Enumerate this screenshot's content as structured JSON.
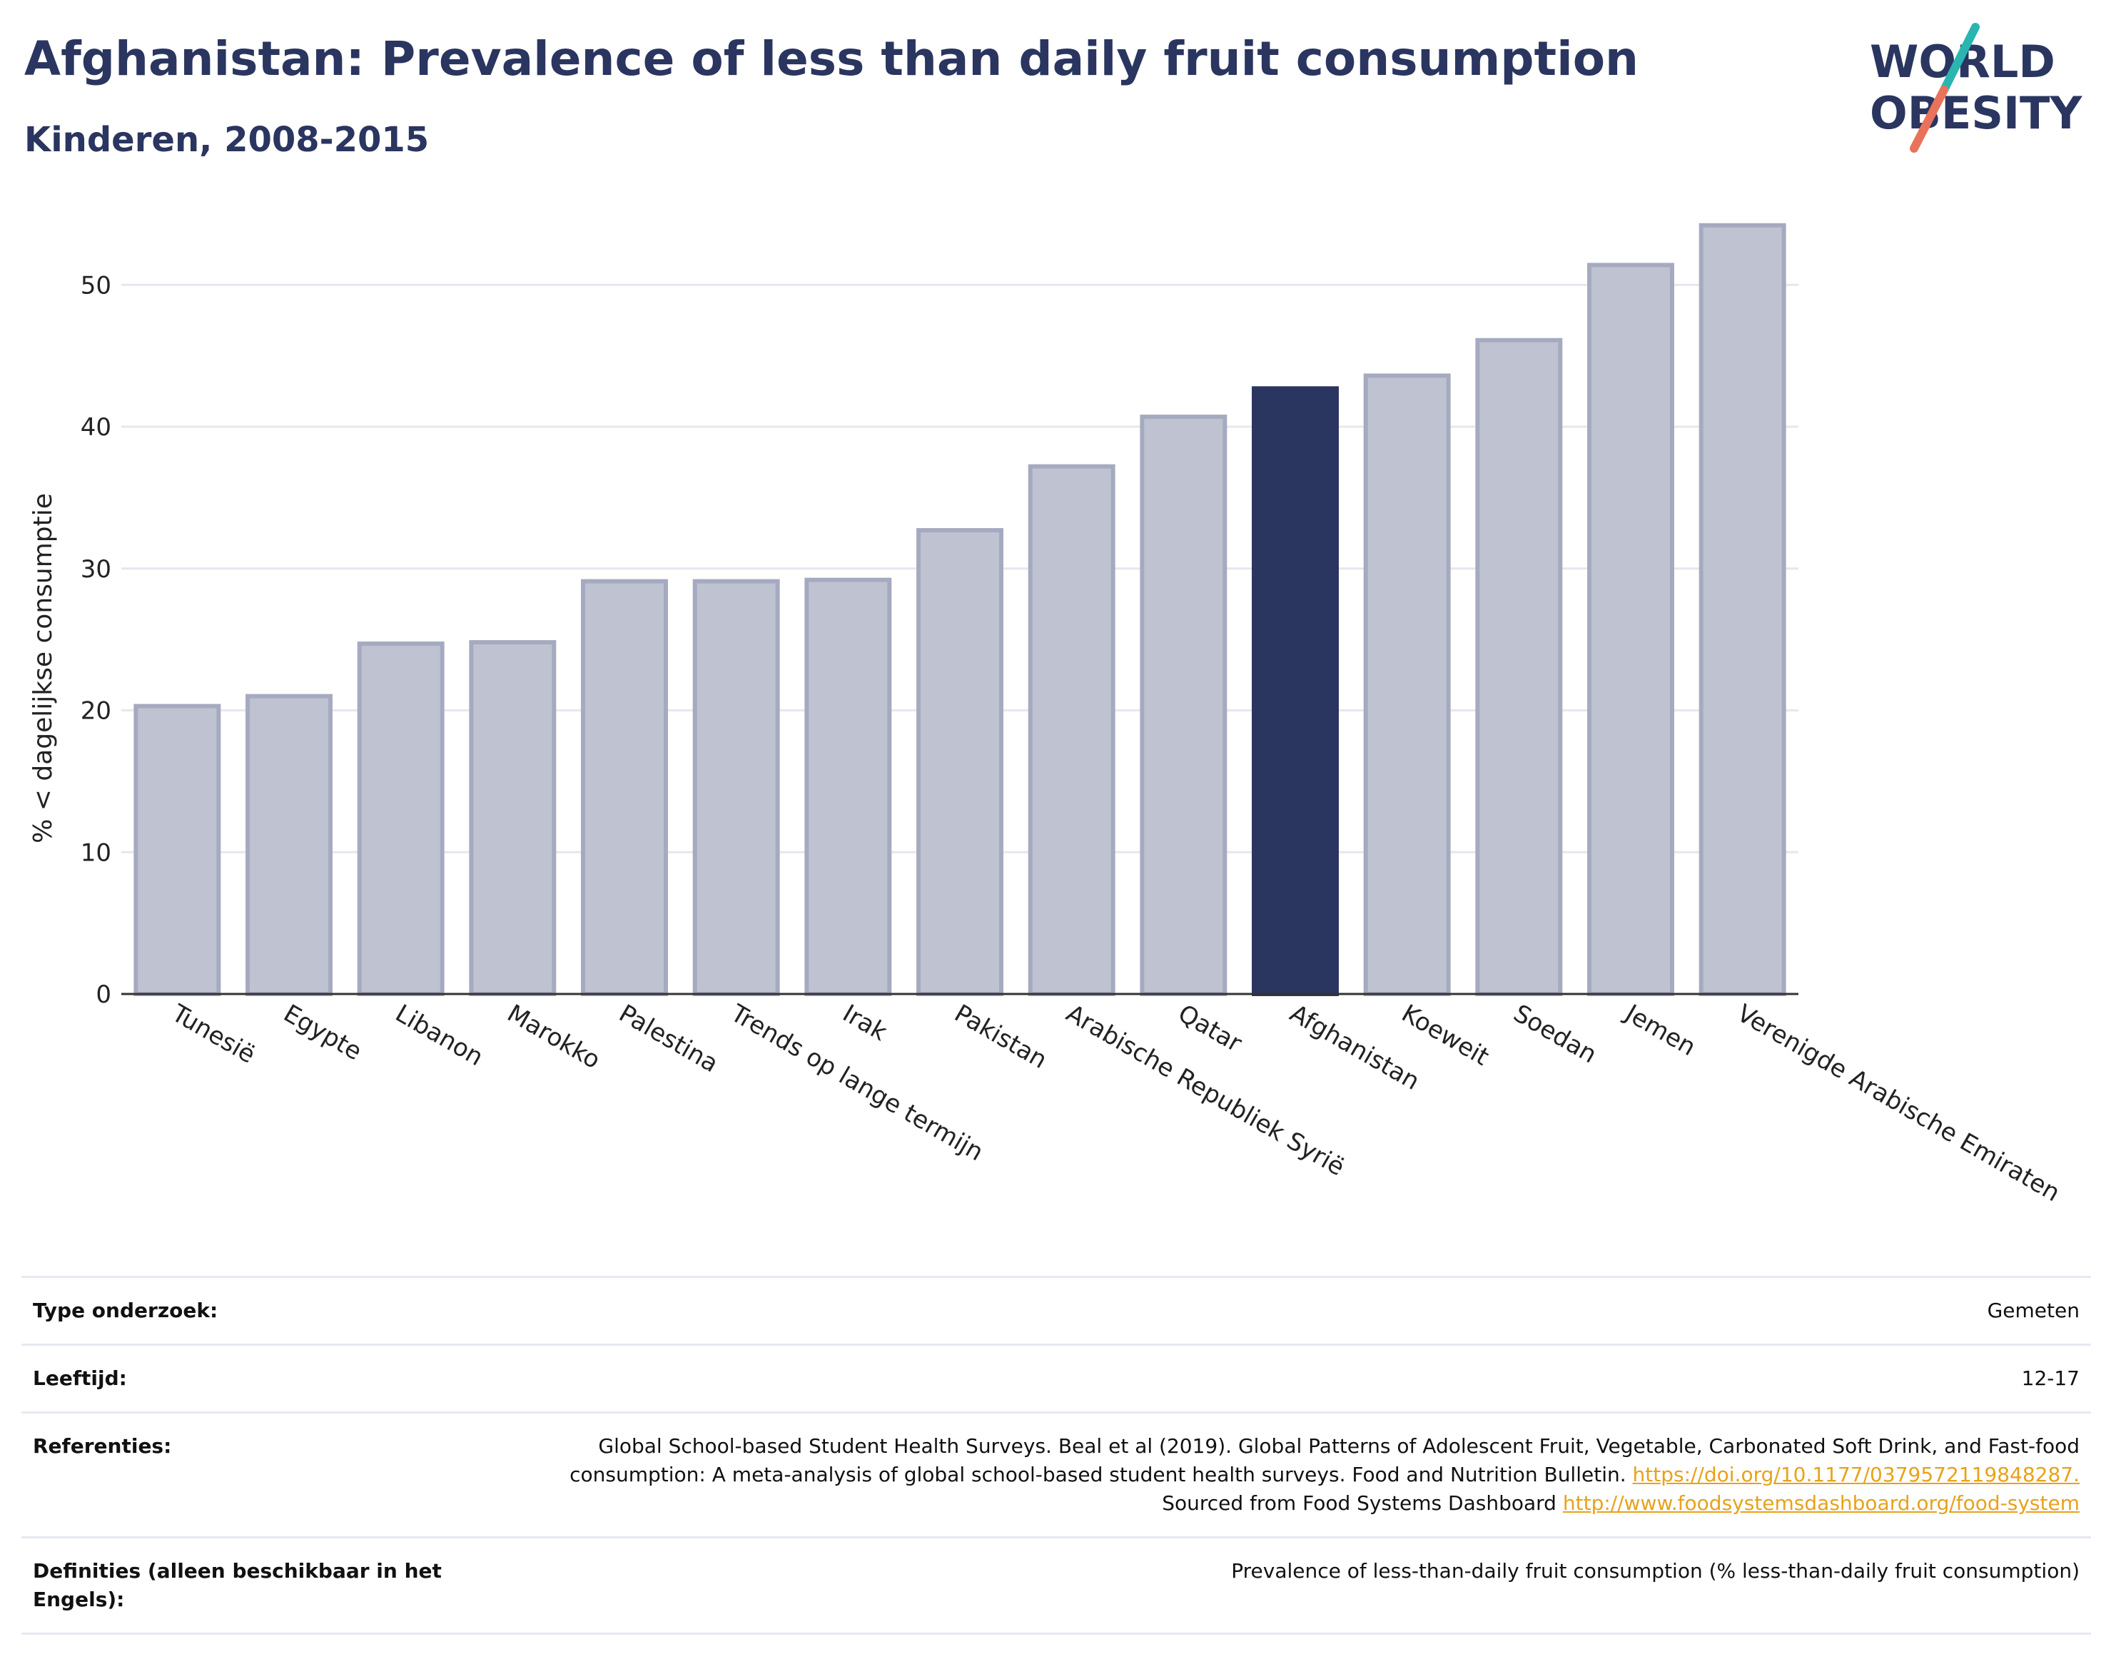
{
  "header": {
    "title": "Afghanistan: Prevalence of less than daily fruit consumption",
    "subtitle": "Kinderen, 2008-2015"
  },
  "logo": {
    "line1": "WORLD",
    "line2": "OBESITY",
    "colors": {
      "text": "#2a3560",
      "slash_teal": "#2bb5b0",
      "slash_coral": "#e8735a"
    }
  },
  "colors": {
    "bar": "#bfc3d1",
    "bar_stroke": "#a5aac0",
    "highlight": "#2a3560",
    "grid": "#e6e7ee"
  },
  "chart_data": {
    "type": "bar",
    "ylabel": "% < dagelijkse consumptie",
    "ylim": [
      0,
      56
    ],
    "yticks": [
      0,
      10,
      20,
      30,
      40,
      50
    ],
    "grid": true,
    "categories": [
      "Tunesië",
      "Egypte",
      "Libanon",
      "Marokko",
      "Palestina",
      "Trends op lange termijn",
      "Irak",
      "Pakistan",
      "Arabische Republiek Syrië",
      "Qatar",
      "Afghanistan",
      "Koeweit",
      "Soedan",
      "Jemen",
      "Verenigde Arabische Emiraten"
    ],
    "values": [
      20.3,
      21.0,
      24.7,
      24.8,
      29.1,
      29.1,
      29.2,
      32.7,
      37.2,
      40.7,
      42.7,
      43.6,
      46.1,
      51.4,
      54.2
    ],
    "highlight": "Afghanistan"
  },
  "meta": [
    {
      "key": "Type onderzoek:",
      "value": "Gemeten"
    },
    {
      "key": "Leeftijd:",
      "value": "12-17"
    },
    {
      "key": "Referenties:",
      "value_text1": "Global School-based Student Health Surveys. Beal et al (2019). Global Patterns of Adolescent Fruit, Vegetable, Carbonated Soft Drink, and Fast-food consumption: A meta-analysis of global school-based student health surveys. Food and Nutrition Bulletin.",
      "link1": "https://doi.org/10.1177/0379572119848287.",
      "value_text2": "Sourced from Food Systems Dashboard",
      "link2": "http://www.foodsystemsdashboard.org/food-system"
    },
    {
      "key": "Definities (alleen beschikbaar in het Engels):",
      "value": "Prevalence of less-than-daily fruit consumption (% less-than-daily fruit consumption)"
    }
  ]
}
